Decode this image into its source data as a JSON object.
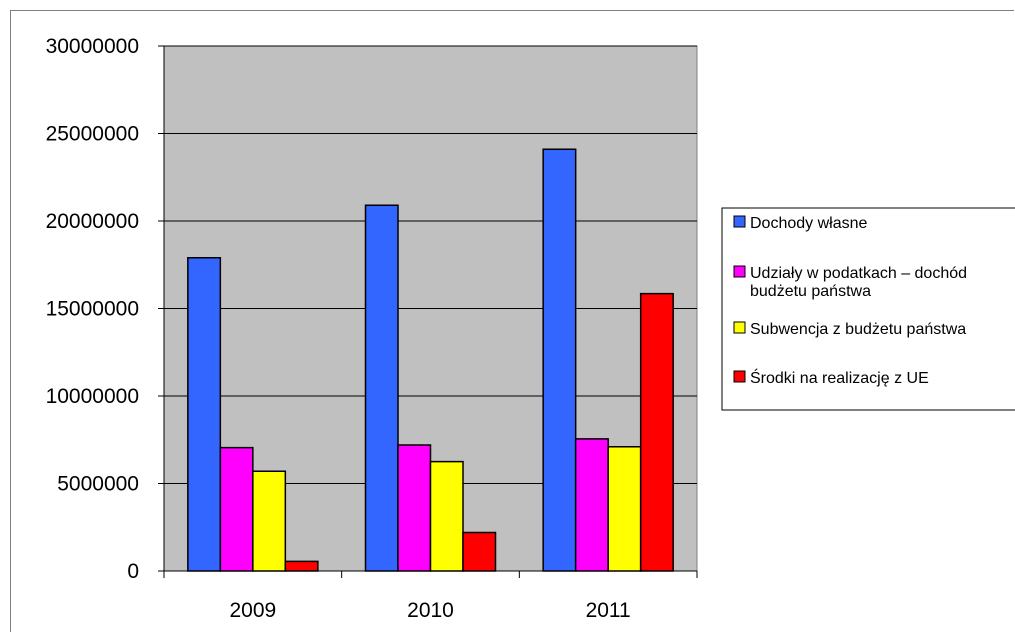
{
  "chart_data": {
    "type": "bar",
    "title": "",
    "xlabel": "",
    "ylabel": "",
    "categories": [
      "2009",
      "2010",
      "2011"
    ],
    "ylim": [
      0,
      30000000
    ],
    "yticks": [
      0,
      5000000,
      10000000,
      15000000,
      20000000,
      25000000,
      30000000
    ],
    "grid": true,
    "legend_position": "right",
    "series": [
      {
        "name": "Dochody własne",
        "color": "#3366ff",
        "values": [
          17900000,
          20900000,
          24100000
        ]
      },
      {
        "name": "Udziały w podatkach – dochód budżetu państwa",
        "name_lines": [
          "Udziały w podatkach – dochód",
          "budżetu państwa"
        ],
        "color": "#ff00ff",
        "values": [
          7050000,
          7200000,
          7550000
        ]
      },
      {
        "name": "Subwencja z budżetu państwa",
        "color": "#ffff00",
        "values": [
          5700000,
          6250000,
          7100000
        ]
      },
      {
        "name": "Środki na realizację z UE",
        "color": "#ff0000",
        "values": [
          550000,
          2200000,
          15850000
        ]
      }
    ],
    "plot_background": "#c0c0c0"
  }
}
